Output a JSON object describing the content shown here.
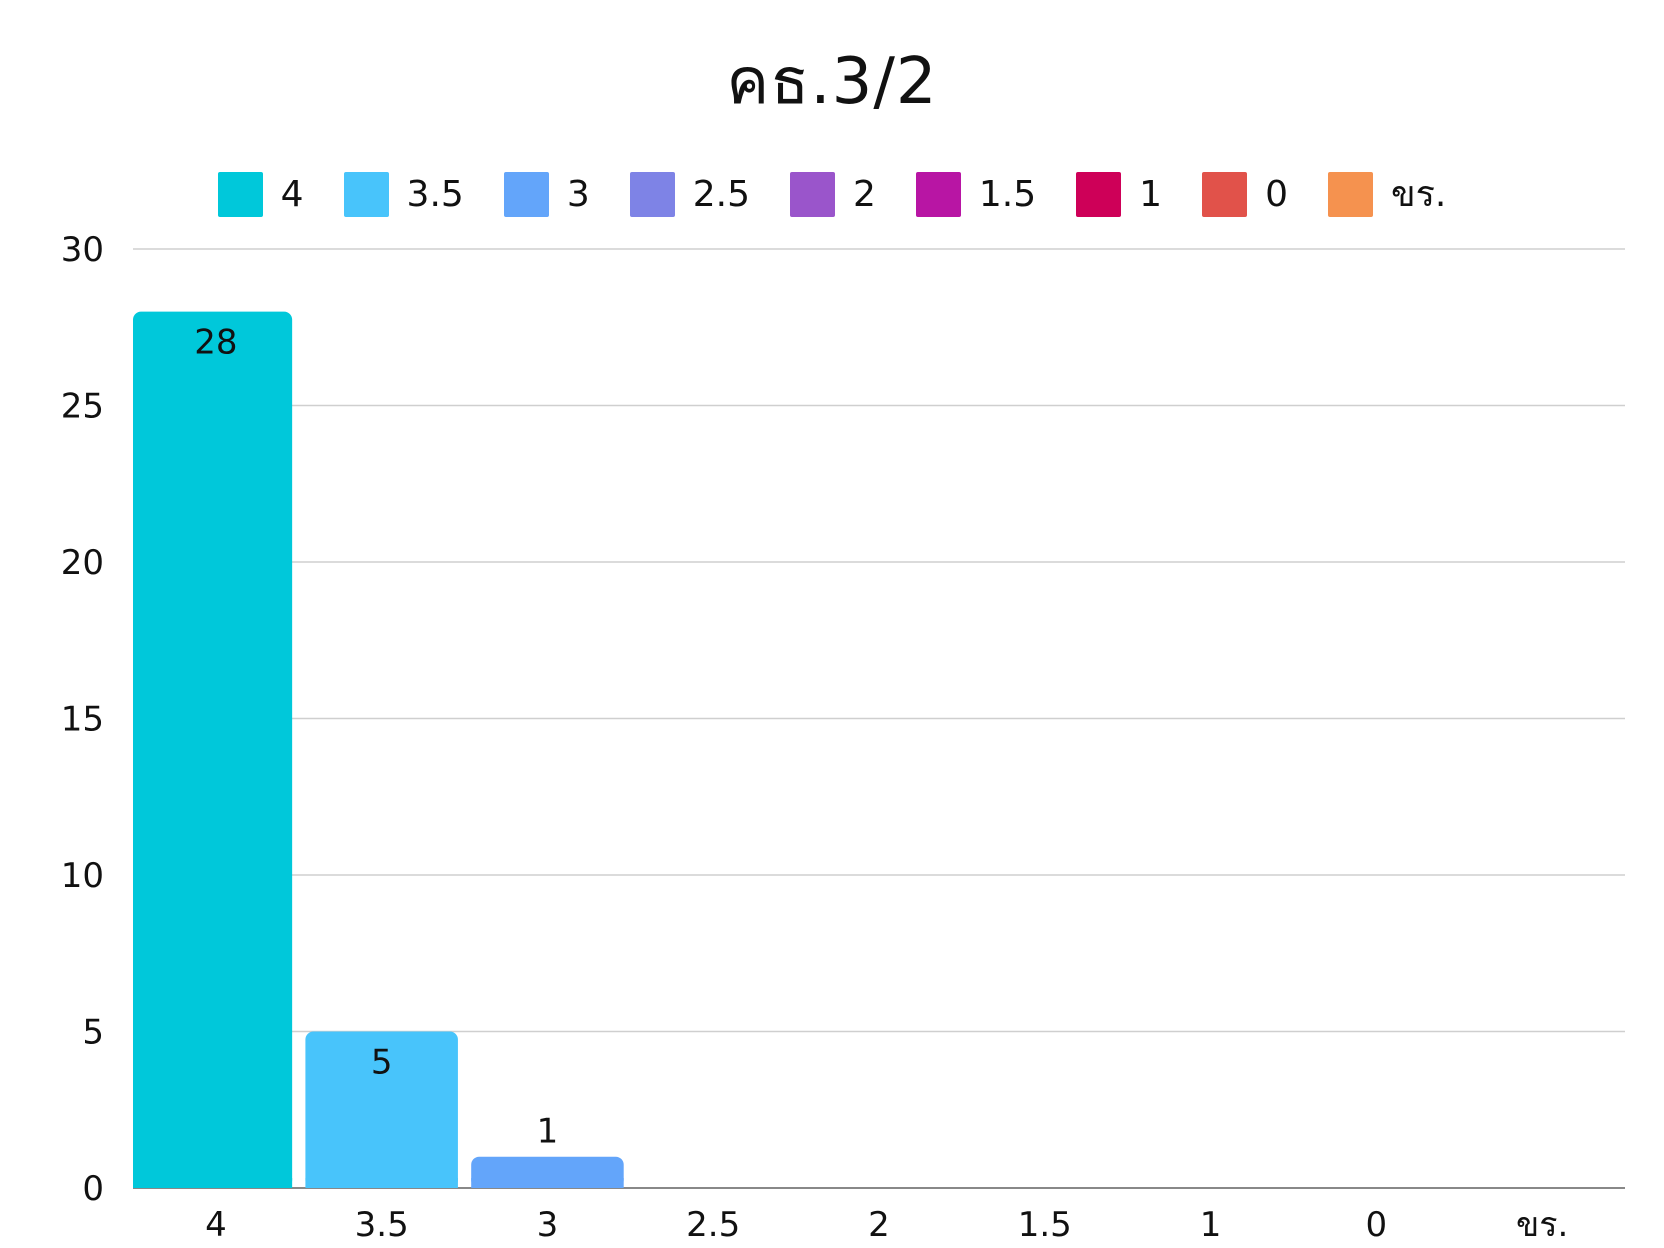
{
  "chart_data": {
    "type": "bar",
    "title": "คธ.3/2",
    "categories": [
      "4",
      "3.5",
      "3",
      "2.5",
      "2",
      "1.5",
      "1",
      "0",
      "ขร."
    ],
    "values": [
      28,
      5,
      1,
      0,
      0,
      0,
      0,
      0,
      0
    ],
    "data_labels": [
      "28",
      "5",
      "1",
      "",
      "",
      "",
      "",
      "",
      ""
    ],
    "colors": [
      "#00C8DA",
      "#48C4FB",
      "#63A5FA",
      "#7E83E6",
      "#9A55CB",
      "#B815A4",
      "#CE0058",
      "#E1524A",
      "#F5924F"
    ],
    "legend": {
      "position": "top",
      "entries": [
        "4",
        "3.5",
        "3",
        "2.5",
        "2",
        "1.5",
        "1",
        "0",
        "ขร."
      ]
    },
    "xlabel": "",
    "ylabel": "",
    "ylim": [
      0,
      30
    ],
    "yticks": [
      0,
      5,
      10,
      15,
      20,
      25,
      30
    ],
    "grid": true
  }
}
